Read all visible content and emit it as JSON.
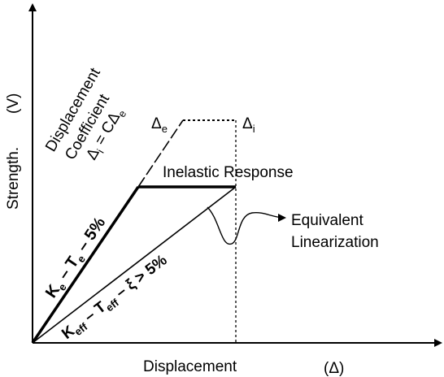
{
  "y_axis": {
    "label": "Strength.",
    "unit": "(V)"
  },
  "x_axis": {
    "label": "Displacement",
    "unit": "(Δ)"
  },
  "coefficient": {
    "line1": "Displacement",
    "line2": "Coefficient",
    "formula": [
      {
        "text": "Δ",
        "sub": false
      },
      {
        "text": "i",
        "sub": true
      },
      {
        "text": " = CΔ",
        "sub": false
      },
      {
        "text": "e",
        "sub": true
      }
    ]
  },
  "delta_e": [
    {
      "text": "Δ",
      "sub": false
    },
    {
      "text": "e",
      "sub": true
    }
  ],
  "delta_i": [
    {
      "text": "Δ",
      "sub": false
    },
    {
      "text": "i",
      "sub": true
    }
  ],
  "inelastic": "Inelastic Response",
  "equivalent": {
    "line1": "Equivalent",
    "line2": "Linearization"
  },
  "elastic_line": [
    {
      "text": "K",
      "sub": false
    },
    {
      "text": "e",
      "sub": true
    },
    {
      "text": " – T",
      "sub": false
    },
    {
      "text": "e",
      "sub": true
    },
    {
      "text": " – 5%",
      "sub": false
    }
  ],
  "effective_line": [
    {
      "text": "K",
      "sub": false
    },
    {
      "text": "eff",
      "sub": true
    },
    {
      "text": " – T",
      "sub": false
    },
    {
      "text": "eff",
      "sub": true
    },
    {
      "text": " – ξ > 5%",
      "sub": false
    }
  ]
}
